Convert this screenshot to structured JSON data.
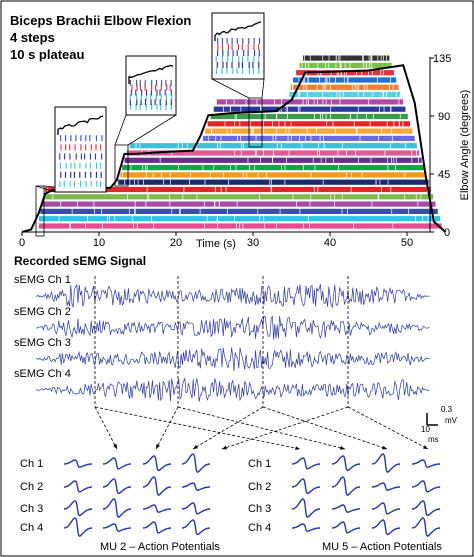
{
  "figure_border": "#000000",
  "top_panel": {
    "title_lines": [
      "Biceps Brachii Elbow Flexion",
      "4 steps",
      "10 s  plateau"
    ],
    "x_axis_label": "Time (s)",
    "x_ticks": [
      "0",
      "10",
      "20",
      "30",
      "40",
      "50"
    ],
    "y_axis_label": "Elbow Angle (degrees)",
    "y_ticks": [
      "0",
      "45",
      "90",
      "135"
    ],
    "series_colors": [
      "#e64b8c",
      "#2ec4e8",
      "#3a4fa8",
      "#a64ca8",
      "#7db84a",
      "#e3262a",
      "#1a2a6c",
      "#f39a1e",
      "#16a34a",
      "#6b2d8a",
      "#e05a9a",
      "#40c0d8",
      "#6a6ae0",
      "#f4a836",
      "#e3262a",
      "#3a9c4a",
      "#2a3a9a",
      "#b04aa8",
      "#5ad0e0",
      "#f08030",
      "#1f6fd0",
      "#e03040",
      "#7dbf4a",
      "#333333"
    ]
  },
  "middle_panel": {
    "title": "Recorded sEMG Signal",
    "channels": [
      "sEMG Ch 1",
      "sEMG Ch 2",
      "sEMG Ch 3",
      "sEMG Ch 4"
    ],
    "scale_bar": {
      "amplitude": "0.3",
      "amplitude_unit": "mV",
      "time": "10",
      "time_unit": "ms"
    },
    "signal_color": "#2b3aa0"
  },
  "bottom_panel": {
    "groups": [
      {
        "label": "MU 2  –  Action Potentials",
        "rows": [
          "Ch 1",
          "Ch 2",
          "Ch 3",
          "Ch 4"
        ]
      },
      {
        "label": "MU 5  –  Action Potentials",
        "rows": [
          "Ch 1",
          "Ch 2",
          "Ch 3",
          "Ch 4"
        ]
      }
    ],
    "waveform_color": "#2b3aa0"
  }
}
